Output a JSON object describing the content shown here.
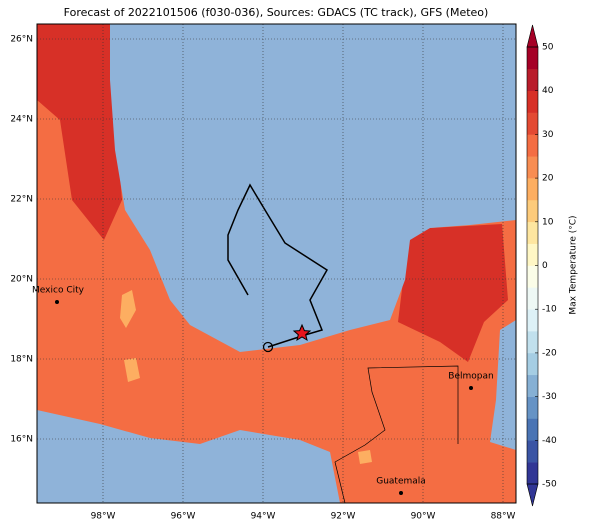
{
  "title": "Forecast of 2022101506 (f030-036), Sources: GDACS (TC track), GFS (Meteo)",
  "map": {
    "xlim": [
      -99.65,
      -87.675
    ],
    "ylim": [
      14.4,
      26.375
    ],
    "xticks": [
      {
        "value": -98,
        "label": "98°W"
      },
      {
        "value": -96,
        "label": "96°W"
      },
      {
        "value": -94,
        "label": "94°W"
      },
      {
        "value": -92,
        "label": "92°W"
      },
      {
        "value": -90,
        "label": "90°W"
      },
      {
        "value": -88,
        "label": "88°W"
      }
    ],
    "yticks": [
      {
        "value": 16,
        "label": "16°N"
      },
      {
        "value": 18,
        "label": "18°N"
      },
      {
        "value": 20,
        "label": "20°N"
      },
      {
        "value": 22,
        "label": "22°N"
      },
      {
        "value": 24,
        "label": "24°N"
      },
      {
        "value": 26,
        "label": "26°N"
      }
    ],
    "cities": [
      "Mexico City",
      "Belmopan",
      "Guatemala"
    ]
  },
  "colorbar": {
    "label": "Max Temperature (°C)",
    "lim": [
      -50,
      50
    ],
    "ticks": [
      -50,
      -40,
      -30,
      -20,
      -10,
      0,
      10,
      20,
      30,
      40,
      50
    ],
    "colors": [
      "#313695",
      "#3a54a4",
      "#4a74b4",
      "#6693c5",
      "#86b0d4",
      "#a5cde3",
      "#c1e0ed",
      "#ddf1f7",
      "#eef8f5",
      "#fbfde8",
      "#fff7c5",
      "#fee6a0",
      "#fdcb7b",
      "#fdae61",
      "#f88d52",
      "#f46d43",
      "#e34a33",
      "#d73027",
      "#b91c2b",
      "#a50026"
    ]
  }
}
